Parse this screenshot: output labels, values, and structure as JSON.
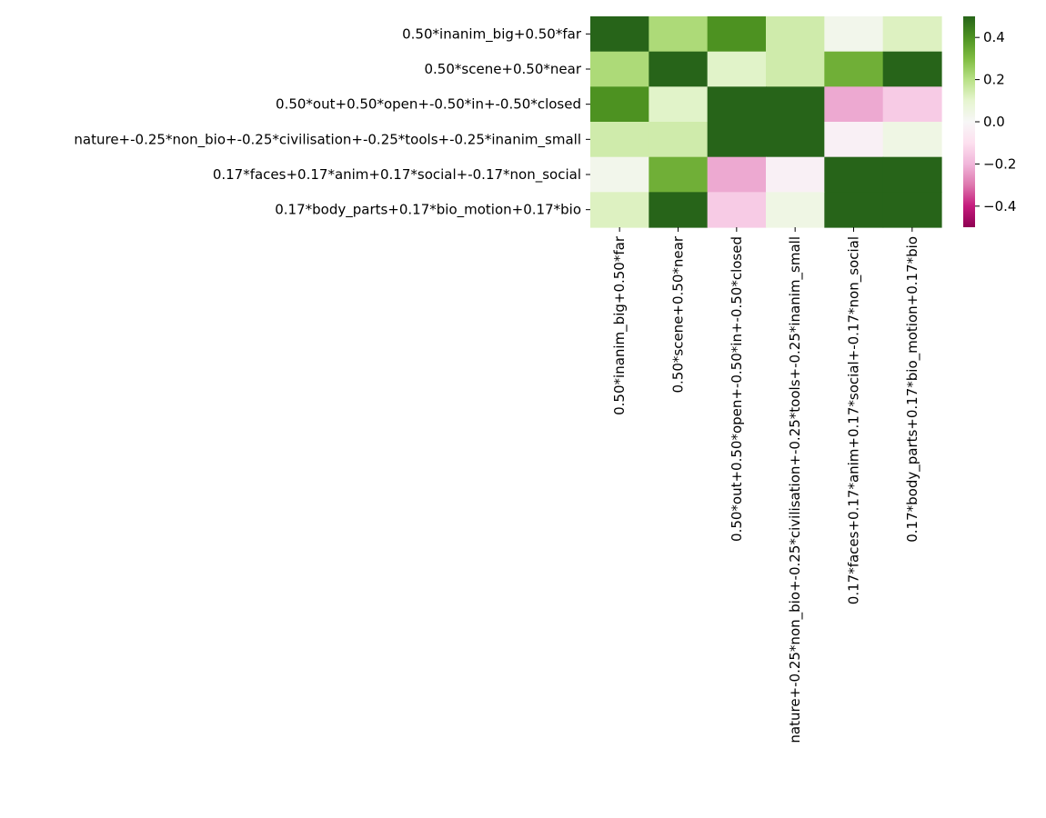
{
  "chart_data": {
    "type": "heatmap",
    "title": "",
    "xlabel": "",
    "ylabel": "",
    "row_labels": [
      "0.50*inanim_big+0.50*far",
      "0.50*scene+0.50*near",
      "0.50*out+0.50*open+-0.50*in+-0.50*closed",
      "nature+-0.25*non_bio+-0.25*civilisation+-0.25*tools+-0.25*inanim_small",
      "0.17*faces+0.17*anim+0.17*social+-0.17*non_social",
      "0.17*body_parts+0.17*bio_motion+0.17*bio"
    ],
    "col_labels": [
      "0.50*inanim_big+0.50*far",
      "0.50*scene+0.50*near",
      "0.50*out+0.50*open+-0.50*in+-0.50*closed",
      "nature+-0.25*non_bio+-0.25*civilisation+-0.25*tools+-0.25*inanim_small",
      "0.17*faces+0.17*anim+0.17*social+-0.17*non_social",
      "0.17*body_parts+0.17*bio_motion+0.17*bio"
    ],
    "values": [
      [
        0.5,
        0.22,
        0.4,
        0.15,
        0.03,
        0.12
      ],
      [
        0.22,
        0.5,
        0.11,
        0.15,
        0.33,
        0.5
      ],
      [
        0.4,
        0.11,
        0.5,
        0.5,
        -0.22,
        -0.15
      ],
      [
        0.15,
        0.15,
        0.5,
        0.5,
        -0.03,
        0.05
      ],
      [
        0.03,
        0.33,
        -0.22,
        -0.03,
        0.5,
        0.5
      ],
      [
        0.12,
        0.5,
        -0.15,
        0.05,
        0.5,
        0.5
      ]
    ],
    "vmin": -0.5,
    "vmax": 0.5,
    "colormap": "PiYG",
    "colorbar_ticks": [
      -0.4,
      -0.2,
      0.0,
      0.2,
      0.4
    ],
    "colorbar_tick_labels": [
      "−0.4",
      "−0.2",
      "0.0",
      "0.2",
      "0.4"
    ],
    "grid": false,
    "legend": "colorbar-right"
  }
}
